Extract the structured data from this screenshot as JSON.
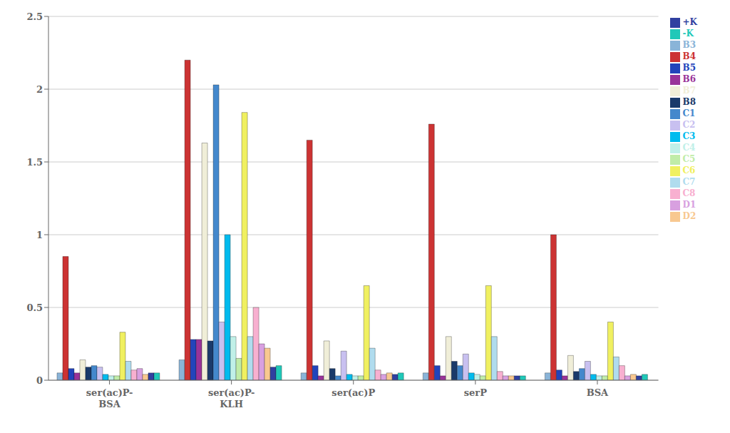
{
  "chart_data": {
    "type": "bar",
    "categories": [
      "ser(ac)P-\nBSA",
      "ser(ac)P-\nKLH",
      "ser(ac)P",
      "serP",
      "BSA"
    ],
    "series": [
      {
        "name": "B3",
        "color": "#8AB4D8",
        "values": [
          0.05,
          0.14,
          0.05,
          0.05,
          0.05
        ]
      },
      {
        "name": "B4",
        "color": "#CC3333",
        "values": [
          0.85,
          2.2,
          1.65,
          1.76,
          1.0
        ]
      },
      {
        "name": "B5",
        "color": "#2244BB",
        "values": [
          0.08,
          0.28,
          0.1,
          0.1,
          0.07
        ]
      },
      {
        "name": "B6",
        "color": "#993399",
        "values": [
          0.05,
          0.28,
          0.03,
          0.03,
          0.03
        ]
      },
      {
        "name": "B7",
        "color": "#F0EED8",
        "values": [
          0.14,
          1.63,
          0.27,
          0.3,
          0.17
        ]
      },
      {
        "name": "B8",
        "color": "#1A3A6A",
        "values": [
          0.09,
          0.27,
          0.08,
          0.13,
          0.06
        ]
      },
      {
        "name": "C1",
        "color": "#4488CC",
        "values": [
          0.1,
          2.03,
          0.03,
          0.1,
          0.08
        ]
      },
      {
        "name": "C2",
        "color": "#C8C0F0",
        "values": [
          0.09,
          0.4,
          0.2,
          0.18,
          0.13
        ]
      },
      {
        "name": "C3",
        "color": "#00BBEE",
        "values": [
          0.04,
          1.0,
          0.04,
          0.05,
          0.04
        ]
      },
      {
        "name": "C4",
        "color": "#C0F0E8",
        "values": [
          0.03,
          0.3,
          0.03,
          0.04,
          0.03
        ]
      },
      {
        "name": "C5",
        "color": "#C0ECA8",
        "values": [
          0.03,
          0.15,
          0.03,
          0.03,
          0.03
        ]
      },
      {
        "name": "C6",
        "color": "#F0F060",
        "values": [
          0.33,
          1.84,
          0.65,
          0.65,
          0.4
        ]
      },
      {
        "name": "C7",
        "color": "#B0DCEE",
        "values": [
          0.13,
          0.3,
          0.22,
          0.3,
          0.16
        ]
      },
      {
        "name": "C8",
        "color": "#F8B0D0",
        "values": [
          0.07,
          0.5,
          0.07,
          0.06,
          0.1
        ]
      },
      {
        "name": "D1",
        "color": "#D8A0E0",
        "values": [
          0.08,
          0.25,
          0.04,
          0.03,
          0.03
        ]
      },
      {
        "name": "D2",
        "color": "#F8C890",
        "values": [
          0.04,
          0.22,
          0.05,
          0.03,
          0.04
        ]
      },
      {
        "name": "+K",
        "color": "#3040A0",
        "values": [
          0.05,
          0.09,
          0.04,
          0.03,
          0.03
        ]
      },
      {
        "name": "-K",
        "color": "#20C8B8",
        "values": [
          0.05,
          0.1,
          0.05,
          0.03,
          0.04
        ]
      }
    ],
    "ylim": [
      0,
      2.5
    ],
    "yticks": [
      0,
      0.5,
      1,
      1.5,
      2,
      2.5
    ],
    "grid": true,
    "legend": "right"
  }
}
